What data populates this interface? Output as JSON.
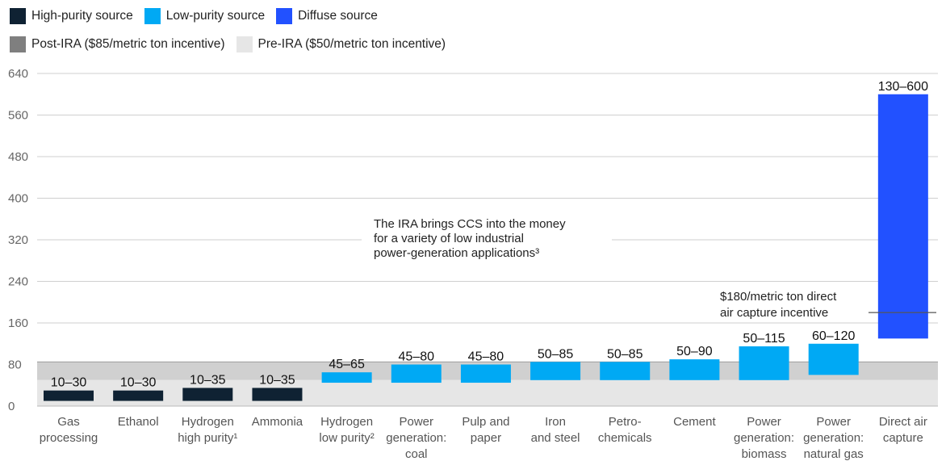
{
  "legend": {
    "row1": [
      {
        "label": "High-purity source",
        "color": "#0f2233"
      },
      {
        "label": "Low-purity source",
        "color": "#00a9f4"
      },
      {
        "label": "Diffuse source",
        "color": "#2251ff"
      }
    ],
    "row2": [
      {
        "label": "Post-IRA ($85/metric ton incentive)",
        "color": "#7f7f7f"
      },
      {
        "label": "Pre-IRA ($50/metric ton incentive)",
        "color": "#e6e6e6"
      }
    ]
  },
  "chart_data": {
    "type": "bar",
    "subtype": "floating-range",
    "ylim": [
      0,
      640
    ],
    "yticks": [
      0,
      80,
      160,
      240,
      320,
      400,
      480,
      560,
      640
    ],
    "grid": true,
    "categories": [
      {
        "label": [
          "Gas",
          "processing"
        ],
        "low": 10,
        "high": 30,
        "range_label": "10–30",
        "source": "high"
      },
      {
        "label": [
          "Ethanol"
        ],
        "low": 10,
        "high": 30,
        "range_label": "10–30",
        "source": "high"
      },
      {
        "label": [
          "Hydrogen",
          "high purity¹"
        ],
        "low": 10,
        "high": 35,
        "range_label": "10–35",
        "source": "high"
      },
      {
        "label": [
          "Ammonia"
        ],
        "low": 10,
        "high": 35,
        "range_label": "10–35",
        "source": "high"
      },
      {
        "label": [
          "Hydrogen",
          "low purity²"
        ],
        "low": 45,
        "high": 65,
        "range_label": "45–65",
        "source": "low"
      },
      {
        "label": [
          "Power",
          "generation:",
          "coal"
        ],
        "low": 45,
        "high": 80,
        "range_label": "45–80",
        "source": "low"
      },
      {
        "label": [
          "Pulp and",
          "paper"
        ],
        "low": 45,
        "high": 80,
        "range_label": "45–80",
        "source": "low"
      },
      {
        "label": [
          "Iron",
          "and steel"
        ],
        "low": 50,
        "high": 85,
        "range_label": "50–85",
        "source": "low"
      },
      {
        "label": [
          "Petro-",
          "chemicals"
        ],
        "low": 50,
        "high": 85,
        "range_label": "50–85",
        "source": "low"
      },
      {
        "label": [
          "Cement"
        ],
        "low": 50,
        "high": 90,
        "range_label": "50–90",
        "source": "low"
      },
      {
        "label": [
          "Power",
          "generation:",
          "biomass"
        ],
        "low": 50,
        "high": 115,
        "range_label": "50–115",
        "source": "low"
      },
      {
        "label": [
          "Power",
          "generation:",
          "natural gas"
        ],
        "low": 60,
        "high": 120,
        "range_label": "60–120",
        "source": "low"
      },
      {
        "label": [
          "Direct air",
          "capture"
        ],
        "low": 130,
        "high": 600,
        "range_label": "130–600",
        "source": "diffuse"
      }
    ],
    "incentive_bands": {
      "pre_ira": 50,
      "post_ira": 85
    },
    "dac_incentive": 180,
    "annotations": {
      "ira_note": [
        "The IRA brings CCS into the money",
        "for a variety of low industrial",
        "power-generation applications³"
      ],
      "dac_note": [
        "$180/metric ton direct",
        "air capture incentive"
      ]
    },
    "colors": {
      "high": "#0f2233",
      "low": "#00a9f4",
      "diffuse": "#2251ff",
      "post_ira": "#d0d0d0",
      "pre_ira": "#e6e6e6",
      "post_ira_line": "#9a9a9a",
      "grid": "#cfcfcf"
    }
  }
}
